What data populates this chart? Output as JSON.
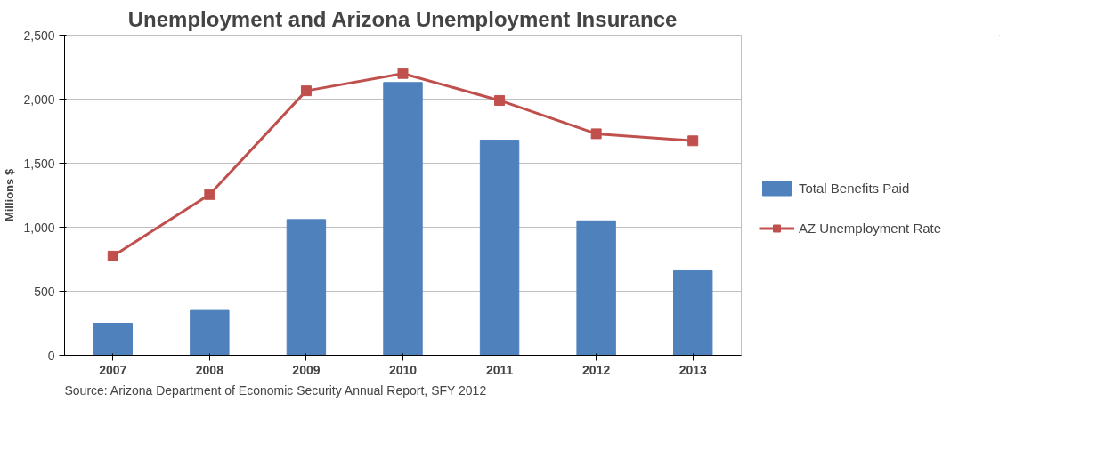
{
  "chart_data": {
    "type": "bar",
    "title": "Unemployment and Arizona Unemployment Insurance",
    "ylabel": "Millions $",
    "categories": [
      "2007",
      "2008",
      "2009",
      "2010",
      "2011",
      "2012",
      "2013"
    ],
    "series": [
      {
        "name": "Total Benefits Paid",
        "color": "#4f81bd",
        "values": [
          250,
          350,
          1060,
          2130,
          1680,
          1050,
          660
        ]
      },
      {
        "name": "AZ Unemployment Rate",
        "type": "line",
        "color": "#c0504d",
        "marker": "square",
        "values": [
          775,
          1255,
          2065,
          2200,
          1990,
          1730,
          1675
        ]
      }
    ],
    "ylim": [
      0,
      2500
    ],
    "yticks": [
      {
        "value": 0,
        "label": "0"
      },
      {
        "value": 500,
        "label": "500"
      },
      {
        "value": 1000,
        "label": "1,000"
      },
      {
        "value": 1500,
        "label": "1,500"
      },
      {
        "value": 2000,
        "label": "2,000"
      },
      {
        "value": 2500,
        "label": "2,500"
      }
    ],
    "grid": "y",
    "legend": "right",
    "annotations": [
      "Source: Arizona Department of Economic Security Annual Report, SFY 2012"
    ]
  }
}
